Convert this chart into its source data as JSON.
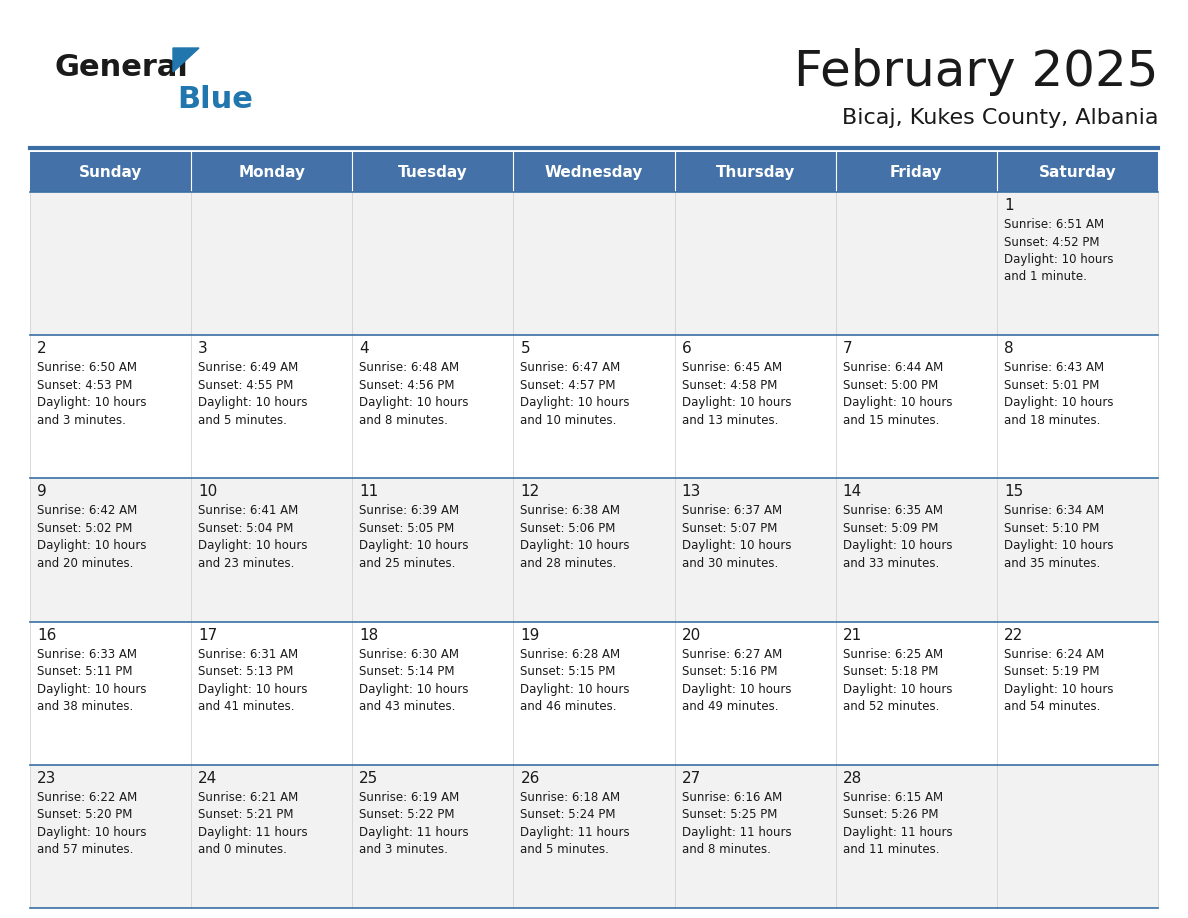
{
  "title": "February 2025",
  "subtitle": "Bicaj, Kukes County, Albania",
  "header_bg": "#4472a8",
  "header_fg": "#ffffff",
  "row_bg_odd": "#f2f2f2",
  "row_bg_even": "#ffffff",
  "border_color": "#4472a8",
  "text_color": "#1a1a1a",
  "logo_general_color": "#1a1a1a",
  "logo_blue_color": "#2176ae",
  "logo_triangle_color": "#2176ae",
  "day_names": [
    "Sunday",
    "Monday",
    "Tuesday",
    "Wednesday",
    "Thursday",
    "Friday",
    "Saturday"
  ],
  "days": [
    {
      "day": 1,
      "col": 6,
      "row": 0,
      "sunrise": "6:51 AM",
      "sunset": "4:52 PM",
      "daylight": "10 hours and 1 minute."
    },
    {
      "day": 2,
      "col": 0,
      "row": 1,
      "sunrise": "6:50 AM",
      "sunset": "4:53 PM",
      "daylight": "10 hours and 3 minutes."
    },
    {
      "day": 3,
      "col": 1,
      "row": 1,
      "sunrise": "6:49 AM",
      "sunset": "4:55 PM",
      "daylight": "10 hours and 5 minutes."
    },
    {
      "day": 4,
      "col": 2,
      "row": 1,
      "sunrise": "6:48 AM",
      "sunset": "4:56 PM",
      "daylight": "10 hours and 8 minutes."
    },
    {
      "day": 5,
      "col": 3,
      "row": 1,
      "sunrise": "6:47 AM",
      "sunset": "4:57 PM",
      "daylight": "10 hours and 10 minutes."
    },
    {
      "day": 6,
      "col": 4,
      "row": 1,
      "sunrise": "6:45 AM",
      "sunset": "4:58 PM",
      "daylight": "10 hours and 13 minutes."
    },
    {
      "day": 7,
      "col": 5,
      "row": 1,
      "sunrise": "6:44 AM",
      "sunset": "5:00 PM",
      "daylight": "10 hours and 15 minutes."
    },
    {
      "day": 8,
      "col": 6,
      "row": 1,
      "sunrise": "6:43 AM",
      "sunset": "5:01 PM",
      "daylight": "10 hours and 18 minutes."
    },
    {
      "day": 9,
      "col": 0,
      "row": 2,
      "sunrise": "6:42 AM",
      "sunset": "5:02 PM",
      "daylight": "10 hours and 20 minutes."
    },
    {
      "day": 10,
      "col": 1,
      "row": 2,
      "sunrise": "6:41 AM",
      "sunset": "5:04 PM",
      "daylight": "10 hours and 23 minutes."
    },
    {
      "day": 11,
      "col": 2,
      "row": 2,
      "sunrise": "6:39 AM",
      "sunset": "5:05 PM",
      "daylight": "10 hours and 25 minutes."
    },
    {
      "day": 12,
      "col": 3,
      "row": 2,
      "sunrise": "6:38 AM",
      "sunset": "5:06 PM",
      "daylight": "10 hours and 28 minutes."
    },
    {
      "day": 13,
      "col": 4,
      "row": 2,
      "sunrise": "6:37 AM",
      "sunset": "5:07 PM",
      "daylight": "10 hours and 30 minutes."
    },
    {
      "day": 14,
      "col": 5,
      "row": 2,
      "sunrise": "6:35 AM",
      "sunset": "5:09 PM",
      "daylight": "10 hours and 33 minutes."
    },
    {
      "day": 15,
      "col": 6,
      "row": 2,
      "sunrise": "6:34 AM",
      "sunset": "5:10 PM",
      "daylight": "10 hours and 35 minutes."
    },
    {
      "day": 16,
      "col": 0,
      "row": 3,
      "sunrise": "6:33 AM",
      "sunset": "5:11 PM",
      "daylight": "10 hours and 38 minutes."
    },
    {
      "day": 17,
      "col": 1,
      "row": 3,
      "sunrise": "6:31 AM",
      "sunset": "5:13 PM",
      "daylight": "10 hours and 41 minutes."
    },
    {
      "day": 18,
      "col": 2,
      "row": 3,
      "sunrise": "6:30 AM",
      "sunset": "5:14 PM",
      "daylight": "10 hours and 43 minutes."
    },
    {
      "day": 19,
      "col": 3,
      "row": 3,
      "sunrise": "6:28 AM",
      "sunset": "5:15 PM",
      "daylight": "10 hours and 46 minutes."
    },
    {
      "day": 20,
      "col": 4,
      "row": 3,
      "sunrise": "6:27 AM",
      "sunset": "5:16 PM",
      "daylight": "10 hours and 49 minutes."
    },
    {
      "day": 21,
      "col": 5,
      "row": 3,
      "sunrise": "6:25 AM",
      "sunset": "5:18 PM",
      "daylight": "10 hours and 52 minutes."
    },
    {
      "day": 22,
      "col": 6,
      "row": 3,
      "sunrise": "6:24 AM",
      "sunset": "5:19 PM",
      "daylight": "10 hours and 54 minutes."
    },
    {
      "day": 23,
      "col": 0,
      "row": 4,
      "sunrise": "6:22 AM",
      "sunset": "5:20 PM",
      "daylight": "10 hours and 57 minutes."
    },
    {
      "day": 24,
      "col": 1,
      "row": 4,
      "sunrise": "6:21 AM",
      "sunset": "5:21 PM",
      "daylight": "11 hours and 0 minutes."
    },
    {
      "day": 25,
      "col": 2,
      "row": 4,
      "sunrise": "6:19 AM",
      "sunset": "5:22 PM",
      "daylight": "11 hours and 3 minutes."
    },
    {
      "day": 26,
      "col": 3,
      "row": 4,
      "sunrise": "6:18 AM",
      "sunset": "5:24 PM",
      "daylight": "11 hours and 5 minutes."
    },
    {
      "day": 27,
      "col": 4,
      "row": 4,
      "sunrise": "6:16 AM",
      "sunset": "5:25 PM",
      "daylight": "11 hours and 8 minutes."
    },
    {
      "day": 28,
      "col": 5,
      "row": 4,
      "sunrise": "6:15 AM",
      "sunset": "5:26 PM",
      "daylight": "11 hours and 11 minutes."
    }
  ],
  "fig_width": 11.88,
  "fig_height": 9.18,
  "dpi": 100,
  "title_fontsize": 36,
  "subtitle_fontsize": 16,
  "header_fontsize": 11,
  "day_num_fontsize": 11,
  "cell_text_fontsize": 8.5
}
